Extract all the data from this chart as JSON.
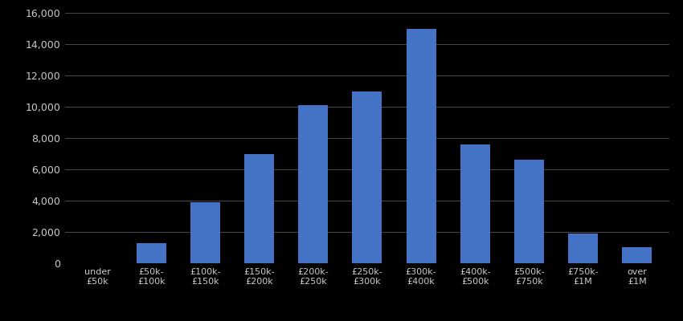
{
  "categories": [
    "under\n£50k",
    "£50k-\n£100k",
    "£100k-\n£150k",
    "£150k-\n£200k",
    "£200k-\n£250k",
    "£250k-\n£300k",
    "£300k-\n£400k",
    "£400k-\n£500k",
    "£500k-\n£750k",
    "£750k-\n£1M",
    "over\n£1M"
  ],
  "values": [
    0,
    1300,
    3900,
    7000,
    10100,
    11000,
    15000,
    7600,
    6600,
    1900,
    1050
  ],
  "bar_color": "#4472C4",
  "background_color": "#000000",
  "text_color": "#cccccc",
  "grid_color": "#555555",
  "ylim": [
    0,
    16000
  ],
  "yticks": [
    0,
    2000,
    4000,
    6000,
    8000,
    10000,
    12000,
    14000,
    16000
  ],
  "bar_width": 0.55
}
